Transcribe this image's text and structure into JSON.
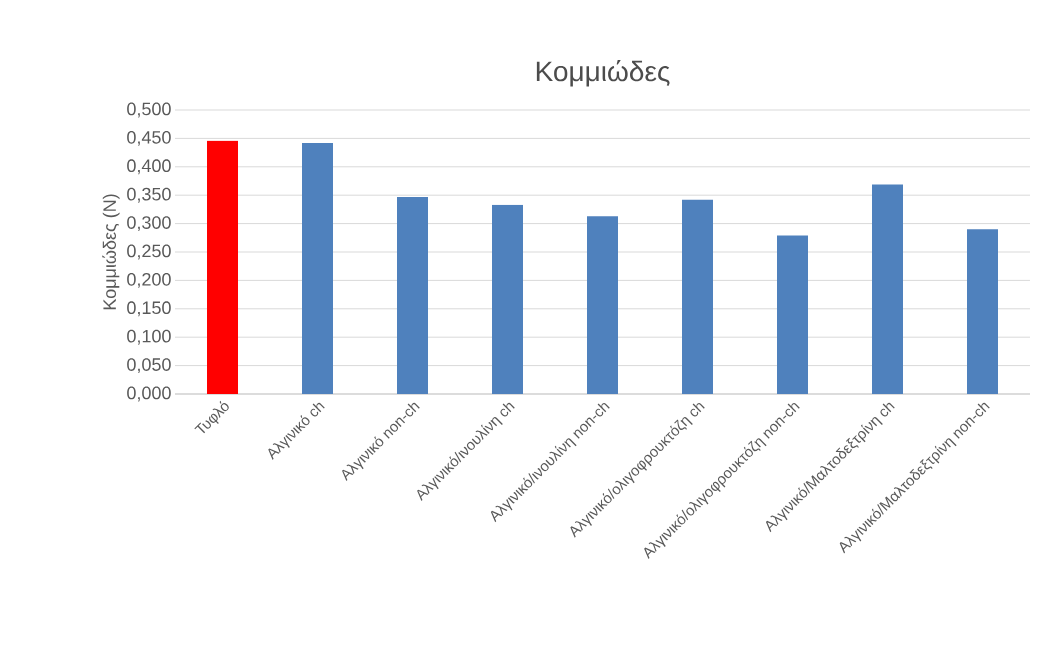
{
  "chart_data": {
    "type": "bar",
    "title": "Κομμιώδες",
    "ylabel": "Κομμιώδες (N)",
    "categories": [
      "Τυφλό",
      "Αλγινικό ch",
      "Αλγινικό non-ch",
      "Αλγινικό/ινουλίνη ch",
      "Αλγινικό/ινουλίνη non-ch",
      "Αλγινικό/ολιγοφρουκτόζη ch",
      "Αλγινικό/ολιγοφρουκτόζη non-ch",
      "Αλγινικό/Μαλτοδεξτρίνη ch",
      "Αλγινικό/Μαλτοδεξτρίνη non-ch"
    ],
    "values": [
      0.446,
      0.442,
      0.347,
      0.333,
      0.313,
      0.342,
      0.279,
      0.369,
      0.29
    ],
    "colors": [
      "#ff0000",
      "#4f81bd",
      "#4f81bd",
      "#4f81bd",
      "#4f81bd",
      "#4f81bd",
      "#4f81bd",
      "#4f81bd",
      "#4f81bd"
    ],
    "ylim": [
      0,
      0.5
    ],
    "yticks": [
      {
        "value": 0,
        "label": "0,000"
      },
      {
        "value": 0.05,
        "label": "0,050"
      },
      {
        "value": 0.1,
        "label": "0,100"
      },
      {
        "value": 0.15,
        "label": "0,150"
      },
      {
        "value": 0.2,
        "label": "0,200"
      },
      {
        "value": 0.25,
        "label": "0,250"
      },
      {
        "value": 0.3,
        "label": "0,300"
      },
      {
        "value": 0.35,
        "label": "0,350"
      },
      {
        "value": 0.4,
        "label": "0,400"
      },
      {
        "value": 0.45,
        "label": "0,450"
      },
      {
        "value": 0.5,
        "label": "0,500"
      }
    ],
    "grid": "y"
  }
}
